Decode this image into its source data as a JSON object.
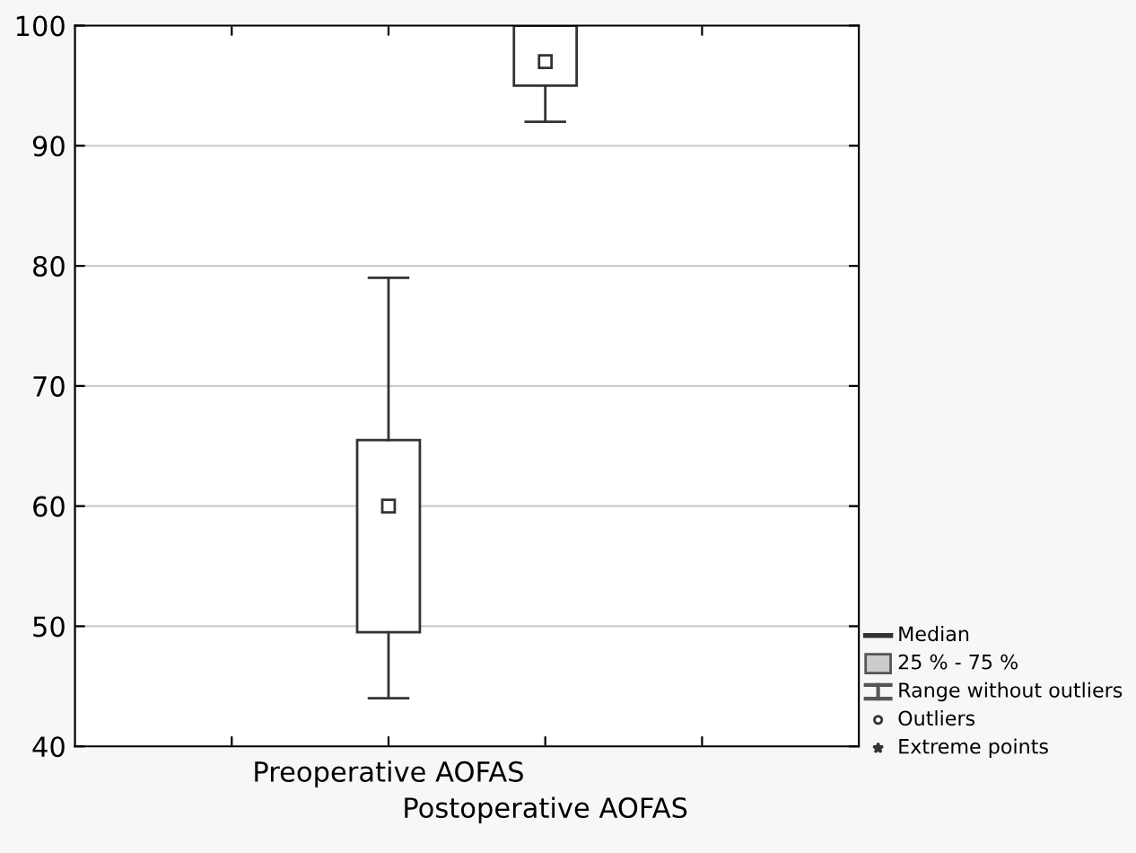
{
  "chart_data": {
    "type": "box",
    "categories": [
      null,
      "Preoperative AOFAS",
      "Postoperative AOFAS",
      null
    ],
    "boxes": [
      null,
      {
        "low": 44,
        "q1": 49.5,
        "median": 60,
        "q3": 65.5,
        "high": 79
      },
      {
        "low": 92,
        "q1": 95,
        "median": 97,
        "q3": 100,
        "high": 100
      },
      null
    ],
    "color": "#ffffff",
    "ylim": [
      40,
      100
    ],
    "yticks": [
      40,
      50,
      60,
      70,
      80,
      90,
      100
    ],
    "grid": "y",
    "annotations": [
      "Median",
      "25 % - 75 %",
      "Range without outliers",
      "Outliers",
      "Extreme points"
    ]
  }
}
